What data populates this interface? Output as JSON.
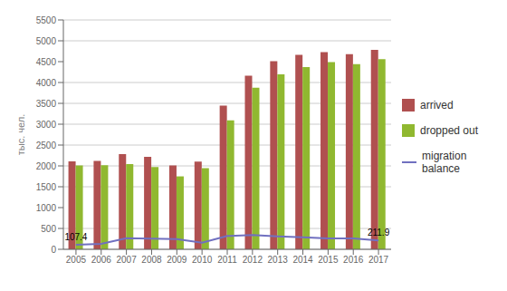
{
  "chart_data": {
    "type": "bar",
    "categories": [
      2005,
      2006,
      2007,
      2008,
      2009,
      2010,
      2011,
      2012,
      2013,
      2014,
      2015,
      2016,
      2017
    ],
    "series": [
      {
        "name": "arrived",
        "type": "bar",
        "color": "#b05050",
        "values": [
          2107,
          2122,
          2284,
          2215,
          2010,
          2103,
          3446,
          4161,
          4509,
          4663,
          4728,
          4681,
          4780
        ]
      },
      {
        "name": "dropped out",
        "type": "bar",
        "color": "#90b830",
        "values": [
          2013,
          2014,
          2044,
          1973,
          1749,
          1944,
          3094,
          3877,
          4198,
          4372,
          4487,
          4440,
          4558
        ]
      },
      {
        "name": "migration\nbalance",
        "type": "line",
        "color": "#7070c0",
        "values": [
          107.4,
          132,
          265,
          257,
          247,
          158,
          319,
          340,
          310,
          290,
          261,
          261,
          211.9
        ]
      }
    ],
    "y_label": "тыс. чел.",
    "ylim": [
      0,
      5500
    ],
    "yticks": [
      0,
      500,
      1000,
      1500,
      2000,
      2500,
      3000,
      3500,
      4000,
      4500,
      5000,
      5500
    ],
    "grid": true,
    "legend": "right",
    "annotations": [
      {
        "text": "107.4",
        "x": 2005,
        "y": 107.4
      },
      {
        "text": "211.9",
        "x": 2017,
        "y": 211.9
      }
    ]
  }
}
